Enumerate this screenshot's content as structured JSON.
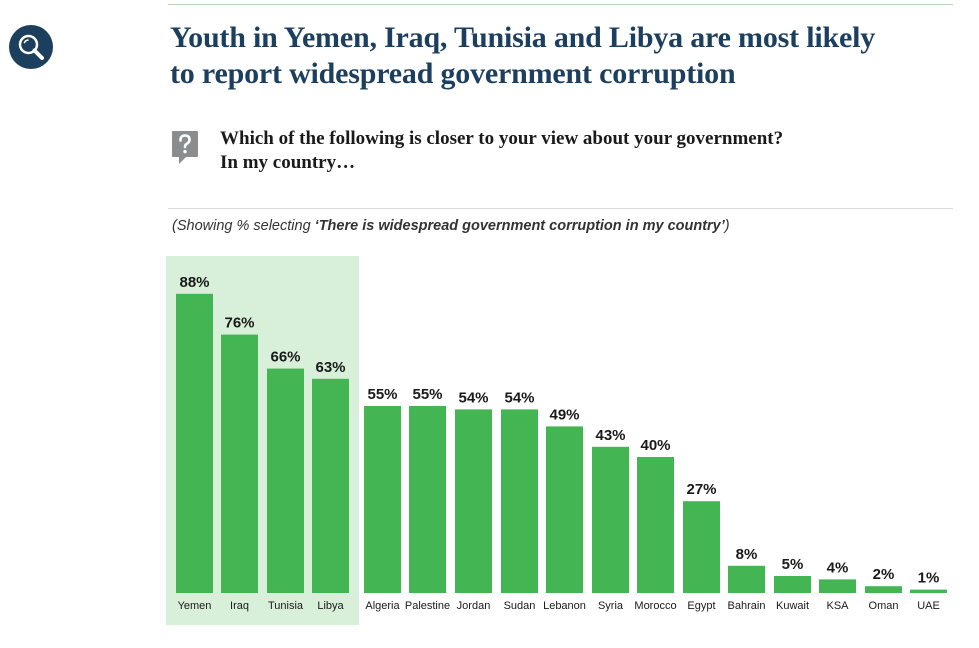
{
  "headline": {
    "line1": "Youth in Yemen, Iraq, Tunisia and Libya are most likely",
    "line2": "to report widespread government corruption"
  },
  "question": {
    "icon": "question-mark-icon",
    "line1": "Which of the following is closer to your view about your government?",
    "line2": "In my country…"
  },
  "note": {
    "prefix": "(Showing % selecting ",
    "emphasis": "‘There is widespread government corruption in my country’",
    "suffix": ")"
  },
  "icons": {
    "search": "search-icon"
  },
  "colors": {
    "headline": "#1d3f5f",
    "bar": "#44b553",
    "highlight_band": "#d8efd9",
    "badge": "#1c3f5e"
  },
  "chart_data": {
    "type": "bar",
    "categories": [
      "Yemen",
      "Iraq",
      "Tunisia",
      "Libya",
      "Algeria",
      "Palestine",
      "Jordan",
      "Sudan",
      "Lebanon",
      "Syria",
      "Morocco",
      "Egypt",
      "Bahrain",
      "Kuwait",
      "KSA",
      "Oman",
      "UAE"
    ],
    "values": [
      88,
      76,
      66,
      63,
      55,
      55,
      54,
      54,
      49,
      43,
      40,
      27,
      8,
      5,
      4,
      2,
      1
    ],
    "data_labels": [
      "88%",
      "76%",
      "66%",
      "63%",
      "55%",
      "55%",
      "54%",
      "54%",
      "49%",
      "43%",
      "40%",
      "27%",
      "8%",
      "5%",
      "4%",
      "2%",
      "1%"
    ],
    "highlighted_categories": [
      "Yemen",
      "Iraq",
      "Tunisia",
      "Libya"
    ],
    "ylim": [
      0,
      100
    ],
    "grid": false,
    "legend": "none"
  }
}
